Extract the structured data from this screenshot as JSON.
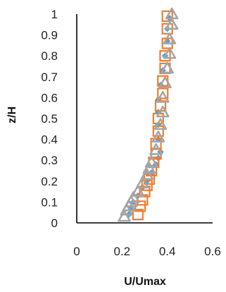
{
  "chart_data": {
    "type": "scatter",
    "xlabel": "U/Umax",
    "ylabel": "z/H",
    "xlim": [
      0,
      0.6
    ],
    "ylim": [
      0,
      1
    ],
    "x_ticks": [
      "0",
      "0.2",
      "0.4",
      "0.6"
    ],
    "y_ticks": [
      "0",
      "0.1",
      "0.2",
      "0.3",
      "0.4",
      "0.5",
      "0.6",
      "0.7",
      "0.8",
      "0.9",
      "1"
    ],
    "grid": false,
    "legend": "none",
    "series": [
      {
        "marker": "diamond",
        "color": "#5b9bd5",
        "points": [
          [
            0.23,
            0.04
          ],
          [
            0.24,
            0.07
          ],
          [
            0.25,
            0.1
          ],
          [
            0.27,
            0.13
          ],
          [
            0.29,
            0.17
          ],
          [
            0.31,
            0.2
          ],
          [
            0.33,
            0.24
          ],
          [
            0.35,
            0.28
          ],
          [
            0.36,
            0.31
          ],
          [
            0.37,
            0.34
          ],
          [
            0.36,
            0.4
          ],
          [
            0.36,
            0.47
          ],
          [
            0.36,
            0.53
          ],
          [
            0.36,
            0.59
          ],
          [
            0.37,
            0.66
          ],
          [
            0.38,
            0.73
          ],
          [
            0.39,
            0.8
          ],
          [
            0.4,
            0.87
          ],
          [
            0.4,
            0.93
          ],
          [
            0.41,
            0.98
          ]
        ]
      },
      {
        "marker": "square",
        "color": "#ed7d31",
        "points": [
          [
            0.27,
            0.04
          ],
          [
            0.28,
            0.08
          ],
          [
            0.29,
            0.11
          ],
          [
            0.3,
            0.15
          ],
          [
            0.31,
            0.18
          ],
          [
            0.32,
            0.21
          ],
          [
            0.33,
            0.25
          ],
          [
            0.34,
            0.29
          ],
          [
            0.35,
            0.33
          ],
          [
            0.35,
            0.38
          ],
          [
            0.36,
            0.44
          ],
          [
            0.36,
            0.5
          ],
          [
            0.37,
            0.56
          ],
          [
            0.38,
            0.62
          ],
          [
            0.38,
            0.68
          ],
          [
            0.39,
            0.74
          ],
          [
            0.39,
            0.8
          ],
          [
            0.4,
            0.86
          ],
          [
            0.4,
            0.93
          ],
          [
            0.4,
            0.99
          ]
        ]
      },
      {
        "marker": "triangle",
        "color": "#a5a5a5",
        "points": [
          [
            0.21,
            0.03
          ],
          [
            0.22,
            0.06
          ],
          [
            0.23,
            0.08
          ],
          [
            0.24,
            0.1
          ],
          [
            0.25,
            0.12
          ],
          [
            0.27,
            0.15
          ],
          [
            0.29,
            0.19
          ],
          [
            0.31,
            0.23
          ],
          [
            0.32,
            0.26
          ],
          [
            0.33,
            0.29
          ],
          [
            0.35,
            0.35
          ],
          [
            0.36,
            0.41
          ],
          [
            0.37,
            0.47
          ],
          [
            0.38,
            0.53
          ],
          [
            0.38,
            0.6
          ],
          [
            0.39,
            0.67
          ],
          [
            0.4,
            0.74
          ],
          [
            0.41,
            0.81
          ],
          [
            0.41,
            0.88
          ],
          [
            0.42,
            0.95
          ],
          [
            0.42,
            1.0
          ]
        ]
      }
    ]
  }
}
